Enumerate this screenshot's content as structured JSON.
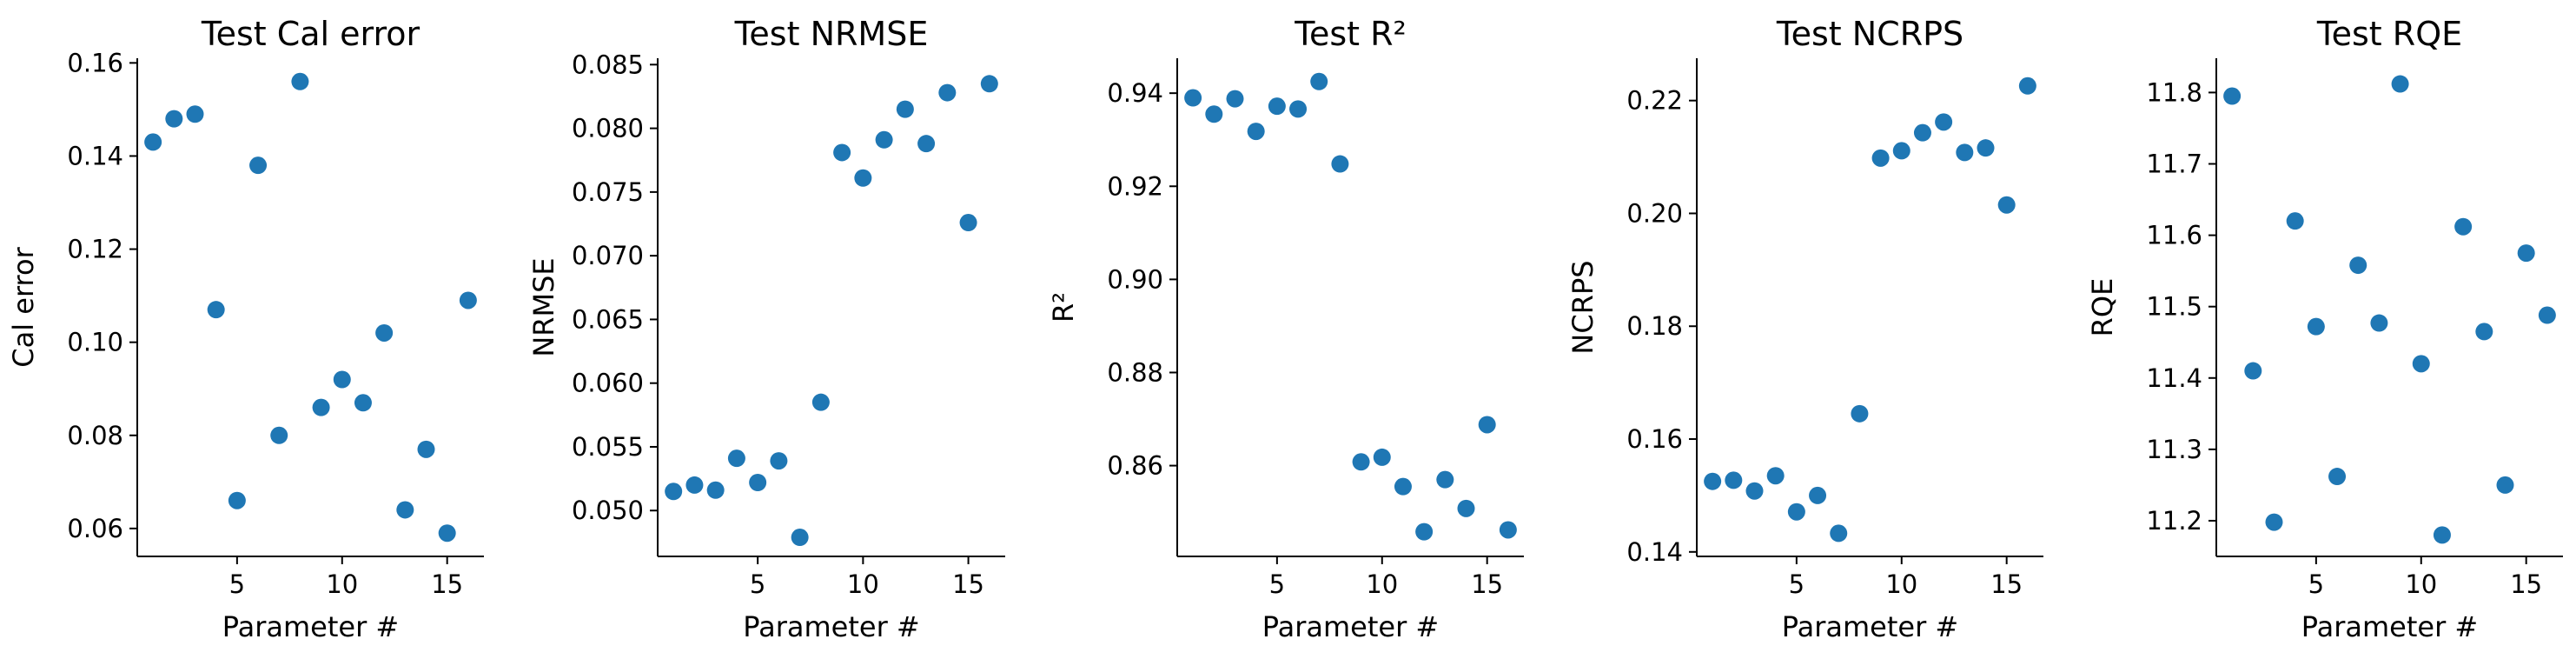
{
  "chart_data": [
    {
      "type": "scatter",
      "title": "Test Cal error",
      "xlabel": "Parameter #",
      "ylabel": "Cal error",
      "color": "#1f77b4",
      "grid": false,
      "xlim": [
        0.25,
        16.75
      ],
      "ylim": [
        0.054,
        0.161
      ],
      "xticks": [
        5,
        10,
        15
      ],
      "xtick_labels": [
        "5",
        "10",
        "15"
      ],
      "yticks": [
        0.06,
        0.08,
        0.1,
        0.12,
        0.14,
        0.16
      ],
      "ytick_labels": [
        "0.06",
        "0.08",
        "0.10",
        "0.12",
        "0.14",
        "0.16"
      ],
      "x": [
        1,
        2,
        3,
        4,
        5,
        6,
        7,
        8,
        9,
        10,
        11,
        12,
        13,
        14,
        15,
        16
      ],
      "y": [
        0.143,
        0.148,
        0.149,
        0.107,
        0.066,
        0.138,
        0.08,
        0.156,
        0.086,
        0.092,
        0.087,
        0.102,
        0.064,
        0.077,
        0.059,
        0.109
      ]
    },
    {
      "type": "scatter",
      "title": "Test NRMSE",
      "xlabel": "Parameter #",
      "ylabel": "NRMSE",
      "color": "#1f77b4",
      "grid": false,
      "xlim": [
        0.25,
        16.75
      ],
      "ylim": [
        0.0464,
        0.0855
      ],
      "xticks": [
        5,
        10,
        15
      ],
      "xtick_labels": [
        "5",
        "10",
        "15"
      ],
      "yticks": [
        0.05,
        0.055,
        0.06,
        0.065,
        0.07,
        0.075,
        0.08,
        0.085
      ],
      "ytick_labels": [
        "0.050",
        "0.055",
        "0.060",
        "0.065",
        "0.070",
        "0.075",
        "0.080",
        "0.085"
      ],
      "x": [
        1,
        2,
        3,
        4,
        5,
        6,
        7,
        8,
        9,
        10,
        11,
        12,
        13,
        14,
        15,
        16
      ],
      "y": [
        0.0515,
        0.052,
        0.0516,
        0.0541,
        0.0522,
        0.0539,
        0.0479,
        0.0585,
        0.0781,
        0.0761,
        0.0791,
        0.0815,
        0.0788,
        0.0828,
        0.0726,
        0.0835
      ]
    },
    {
      "type": "scatter",
      "title": "Test R²",
      "xlabel": "Parameter #",
      "ylabel": "R²",
      "color": "#1f77b4",
      "grid": false,
      "xlim": [
        0.25,
        16.75
      ],
      "ylim": [
        0.8405,
        0.9475
      ],
      "xticks": [
        5,
        10,
        15
      ],
      "xtick_labels": [
        "5",
        "10",
        "15"
      ],
      "yticks": [
        0.86,
        0.88,
        0.9,
        0.92,
        0.94
      ],
      "ytick_labels": [
        "0.86",
        "0.88",
        "0.90",
        "0.92",
        "0.94"
      ],
      "x": [
        1,
        2,
        3,
        4,
        5,
        6,
        7,
        8,
        9,
        10,
        11,
        12,
        13,
        14,
        15,
        16
      ],
      "y": [
        0.939,
        0.9355,
        0.9388,
        0.9318,
        0.9372,
        0.9366,
        0.9425,
        0.9248,
        0.8608,
        0.8618,
        0.8555,
        0.8458,
        0.857,
        0.8508,
        0.8688,
        0.8462
      ]
    },
    {
      "type": "scatter",
      "title": "Test NCRPS",
      "xlabel": "Parameter #",
      "ylabel": "NCRPS",
      "color": "#1f77b4",
      "grid": false,
      "xlim": [
        0.25,
        16.75
      ],
      "ylim": [
        0.1392,
        0.2275
      ],
      "xticks": [
        5,
        10,
        15
      ],
      "xtick_labels": [
        "5",
        "10",
        "15"
      ],
      "yticks": [
        0.14,
        0.16,
        0.18,
        0.2,
        0.22
      ],
      "ytick_labels": [
        "0.14",
        "0.16",
        "0.18",
        "0.20",
        "0.22"
      ],
      "x": [
        1,
        2,
        3,
        4,
        5,
        6,
        7,
        8,
        9,
        10,
        11,
        12,
        13,
        14,
        15,
        16
      ],
      "y": [
        0.1525,
        0.1527,
        0.1508,
        0.1535,
        0.1471,
        0.15,
        0.1433,
        0.1645,
        0.2098,
        0.2111,
        0.2143,
        0.2162,
        0.2108,
        0.2116,
        0.2015,
        0.2226
      ]
    },
    {
      "type": "scatter",
      "title": "Test RQE",
      "xlabel": "Parameter #",
      "ylabel": "RQE",
      "color": "#1f77b4",
      "grid": false,
      "xlim": [
        0.25,
        16.75
      ],
      "ylim": [
        11.15,
        11.848
      ],
      "xticks": [
        5,
        10,
        15
      ],
      "xtick_labels": [
        "5",
        "10",
        "15"
      ],
      "yticks": [
        11.2,
        11.3,
        11.4,
        11.5,
        11.6,
        11.7,
        11.8
      ],
      "ytick_labels": [
        "11.2",
        "11.3",
        "11.4",
        "11.5",
        "11.6",
        "11.7",
        "11.8"
      ],
      "x": [
        1,
        2,
        3,
        4,
        5,
        6,
        7,
        8,
        9,
        10,
        11,
        12,
        13,
        14,
        15,
        16
      ],
      "y": [
        11.795,
        11.41,
        11.198,
        11.62,
        11.472,
        11.262,
        11.558,
        11.477,
        11.812,
        11.42,
        11.18,
        11.612,
        11.465,
        11.25,
        11.575,
        11.488
      ]
    }
  ]
}
